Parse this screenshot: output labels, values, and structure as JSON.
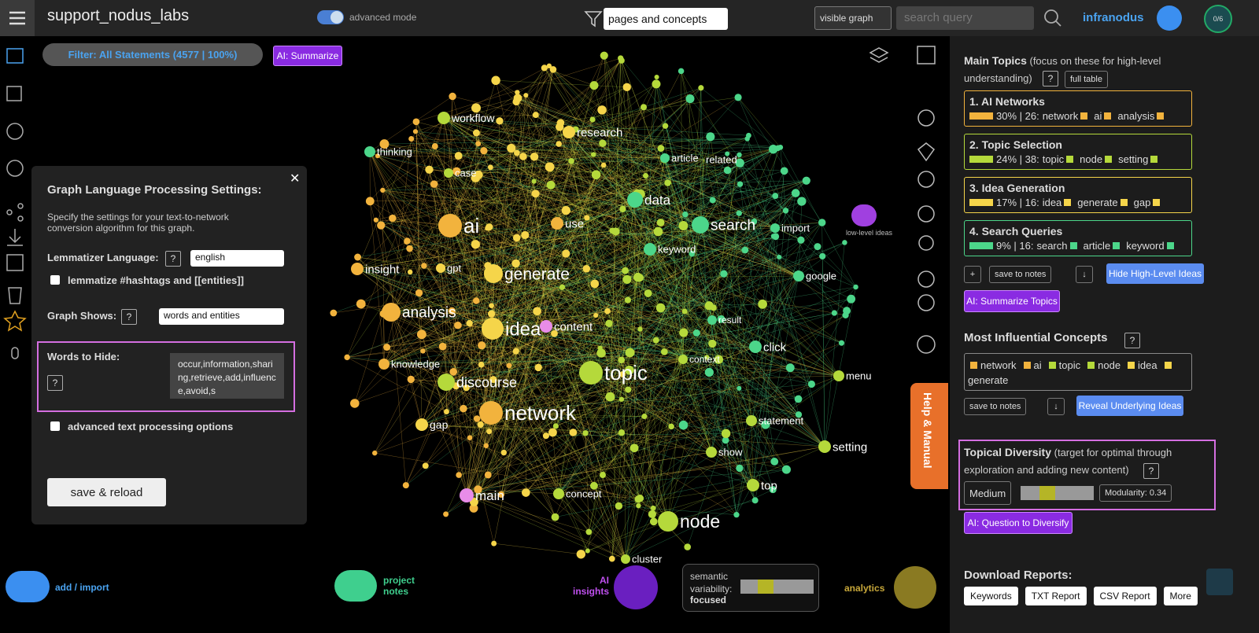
{
  "header": {
    "title": "support_nodus_labs",
    "mode_toggle": "advanced mode",
    "view_select": "pages and concepts",
    "graph_select": "visible graph",
    "search_placeholder": "search query",
    "brand": "infranodus",
    "counter": "0/6"
  },
  "ui": {
    "help_mark": "?",
    "down_mark": "↓",
    "plus_mark": "+"
  },
  "filter": {
    "label": "Filter: All Statements (4577 | 100%)",
    "summarize": "AI: Summarize"
  },
  "settings_panel": {
    "title": "Graph Language Processing Settings:",
    "description": "Specify the settings for your text-to-network conversion algorithm for this graph.",
    "lemmatizer_label": "Lemmatizer Language:",
    "lemmatizer_value": "english",
    "lemmatize_hashtags": "lemmatize #hashtags and [[entities]]",
    "graph_shows_label": "Graph Shows:",
    "graph_shows_value": "words and entities",
    "words_to_hide_label": "Words to Hide:",
    "words_to_hide_value": "occur,information,sharing,retrieve,add,influence,avoid,s",
    "advanced_options": "advanced text processing options",
    "save_button": "save & reload"
  },
  "graph": {
    "nodes": [
      {
        "label": "workflow",
        "color": "#b5d93b"
      },
      {
        "label": "research",
        "color": "#f5d54a"
      },
      {
        "label": "thinking",
        "color": "#4cd68a"
      },
      {
        "label": "case",
        "color": "#b5d93b"
      },
      {
        "label": "article",
        "color": "#4cd68a"
      },
      {
        "label": "related",
        "color": "#4cd68a"
      },
      {
        "label": "data",
        "color": "#4cd68a"
      },
      {
        "label": "ai",
        "color": "#f2b33d"
      },
      {
        "label": "use",
        "color": "#f2b33d"
      },
      {
        "label": "search",
        "color": "#4cd68a"
      },
      {
        "label": "import",
        "color": "#4cd68a"
      },
      {
        "label": "keyword",
        "color": "#4cd68a"
      },
      {
        "label": "insight",
        "color": "#f2b33d"
      },
      {
        "label": "gpt",
        "color": "#f5d54a"
      },
      {
        "label": "generate",
        "color": "#f5d54a"
      },
      {
        "label": "google",
        "color": "#4cd68a"
      },
      {
        "label": "analysis",
        "color": "#f2b33d"
      },
      {
        "label": "idea",
        "color": "#f5d54a"
      },
      {
        "label": "content",
        "color": "#e88ce8"
      },
      {
        "label": "result",
        "color": "#4cd68a"
      },
      {
        "label": "click",
        "color": "#4cd68a"
      },
      {
        "label": "knowledge",
        "color": "#f2b33d"
      },
      {
        "label": "context",
        "color": "#b5d93b"
      },
      {
        "label": "discourse",
        "color": "#b5d93b"
      },
      {
        "label": "topic",
        "color": "#b5d93b"
      },
      {
        "label": "menu",
        "color": "#b5d93b"
      },
      {
        "label": "network",
        "color": "#f2b33d"
      },
      {
        "label": "gap",
        "color": "#f5d54a"
      },
      {
        "label": "statement",
        "color": "#b5d93b"
      },
      {
        "label": "setting",
        "color": "#b5d93b"
      },
      {
        "label": "show",
        "color": "#b5d93b"
      },
      {
        "label": "main",
        "color": "#e88ce8"
      },
      {
        "label": "concept",
        "color": "#b5d93b"
      },
      {
        "label": "top",
        "color": "#b5d93b"
      },
      {
        "label": "node",
        "color": "#b5d93b"
      },
      {
        "label": "cluster",
        "color": "#b5d93b"
      }
    ],
    "low_level_ideas": "low-level ideas"
  },
  "bottom": {
    "add_import": "add / import",
    "project_notes": "project notes",
    "ai_insights": "AI insights",
    "semantic_variability": "semantic variability:",
    "variability_value": "focused",
    "analytics": "analytics"
  },
  "help_manual": "Help & Manual",
  "sidebar": {
    "main_topics": {
      "title": "Main Topics",
      "subtitle": "(focus on these for high-level understanding)",
      "full_table": "full table",
      "topics": [
        {
          "name": "1. AI Networks",
          "stats": "30% | 26:",
          "color": "#f2b33d",
          "words": [
            "network",
            "ai",
            "analysis"
          ]
        },
        {
          "name": "2. Topic Selection",
          "stats": "24% | 38:",
          "color": "#b5d93b",
          "words": [
            "topic",
            "node",
            "setting"
          ]
        },
        {
          "name": "3. Idea Generation",
          "stats": "17% | 16:",
          "color": "#f5d54a",
          "words": [
            "idea",
            "generate",
            "gap"
          ]
        },
        {
          "name": "4. Search Queries",
          "stats": "9% | 16:",
          "color": "#4cd68a",
          "words": [
            "search",
            "article",
            "keyword"
          ]
        }
      ],
      "save_to_notes": "save to notes",
      "hide_button": "Hide High-Level Ideas",
      "summarize_button": "AI: Summarize Topics"
    },
    "influential": {
      "title": "Most Influential Concepts",
      "concepts": [
        {
          "word": "network",
          "color": "#f2b33d"
        },
        {
          "word": "ai",
          "color": "#f2b33d"
        },
        {
          "word": "topic",
          "color": "#b5d93b"
        },
        {
          "word": "node",
          "color": "#b5d93b"
        },
        {
          "word": "idea",
          "color": "#f5d54a"
        },
        {
          "word": "generate",
          "color": "#f5d54a"
        }
      ],
      "save_to_notes": "save to notes",
      "reveal_button": "Reveal Underlying Ideas"
    },
    "diversity": {
      "title": "Topical Diversity",
      "subtitle": "(target for optimal through exploration and adding new content)",
      "level": "Medium",
      "modularity": "Modularity: 0.34",
      "question_button": "AI: Question to Diversify"
    },
    "downloads": {
      "title": "Download Reports:",
      "buttons": [
        "Keywords",
        "TXT Report",
        "CSV Report",
        "More"
      ]
    }
  }
}
